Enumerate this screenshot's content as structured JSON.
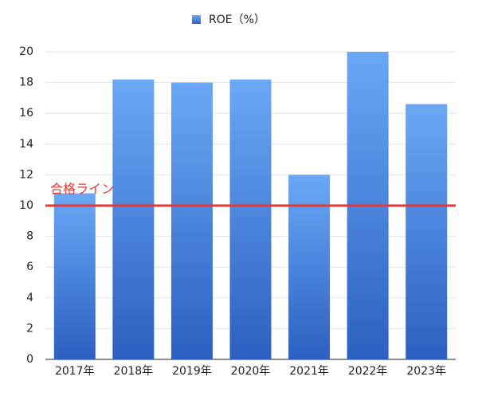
{
  "chart_data": {
    "type": "bar",
    "categories": [
      "2017年",
      "2018年",
      "2019年",
      "2020年",
      "2021年",
      "2022年",
      "2023年"
    ],
    "series": [
      {
        "name": "ROE（%）",
        "color": "#4a86e0",
        "values": [
          10.8,
          18.2,
          18.0,
          18.2,
          12.0,
          20.0,
          16.6
        ]
      }
    ],
    "ylim": [
      0,
      20
    ],
    "yticks": [
      0,
      2,
      4,
      6,
      8,
      10,
      12,
      14,
      16,
      18,
      20
    ],
    "grid": true,
    "legend": "top",
    "reference_line": {
      "value": 10,
      "label": "合格ライン",
      "color": "#e53935"
    }
  }
}
